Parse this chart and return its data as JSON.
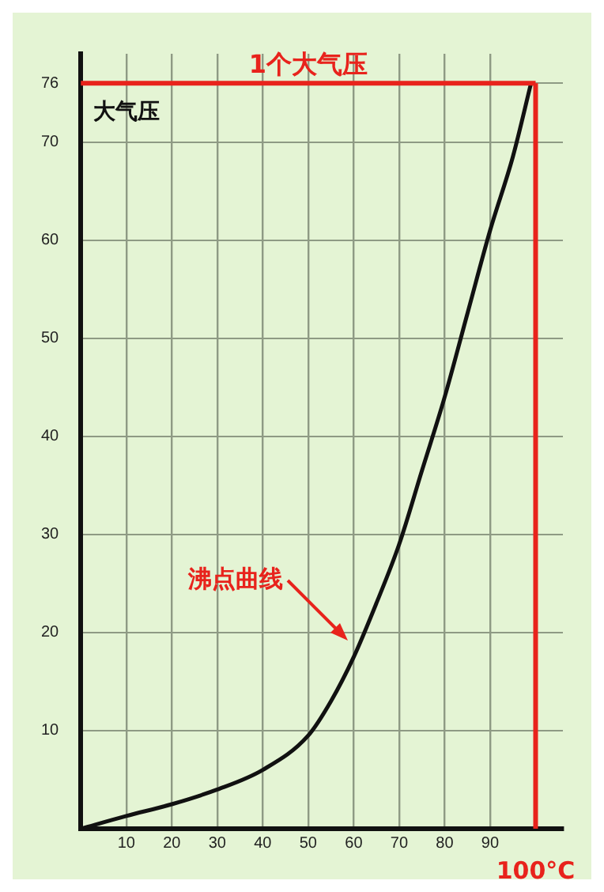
{
  "chart_data": {
    "type": "line",
    "ylabel": "大气压",
    "x": [
      0,
      10,
      20,
      30,
      40,
      50,
      55,
      60,
      65,
      70,
      75,
      80,
      85,
      90,
      95,
      99
    ],
    "series": [
      {
        "color": "#111111",
        "values": [
          0,
          1.3,
          2.5,
          4,
          6,
          9.5,
          13,
          17.5,
          23,
          29,
          36.5,
          44,
          52.5,
          61,
          68.5,
          76
        ]
      }
    ],
    "xlim": [
      0,
      106
    ],
    "xticks": [
      10,
      20,
      30,
      40,
      50,
      60,
      70,
      80,
      90
    ],
    "ylim": [
      0,
      79
    ],
    "yticks": [
      10,
      20,
      30,
      40,
      50,
      60,
      70,
      76
    ],
    "grid": true,
    "marker": "none",
    "line_style": "solid",
    "legend": false,
    "ref_lines": [
      {
        "axis": "y",
        "value": 76,
        "label": "1个大气压",
        "color": "#e8231c"
      },
      {
        "axis": "x",
        "value": 100,
        "label": "100°C",
        "color": "#e8231c"
      }
    ],
    "annotations": [
      "沸点曲线"
    ]
  }
}
